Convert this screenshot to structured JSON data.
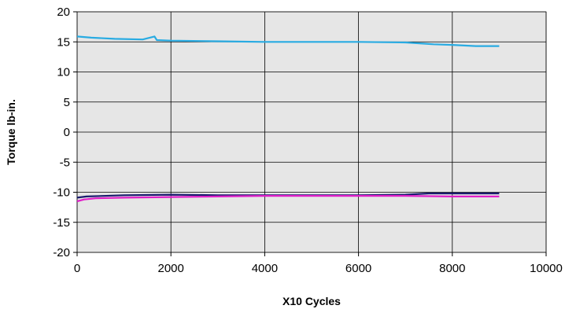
{
  "chart_data": {
    "type": "line",
    "xlabel": "X10  Cycles",
    "ylabel": "Torque lb-in.",
    "xlim": [
      0,
      10000
    ],
    "ylim": [
      -20,
      20
    ],
    "x_ticks": [
      "0",
      "2000",
      "4000",
      "6000",
      "8000",
      "10000"
    ],
    "y_ticks": [
      "20",
      "15",
      "10",
      "5",
      "0",
      "-5",
      "-10",
      "-15",
      "-20"
    ],
    "grid": true,
    "plot_background": "#e6e6e6",
    "series": [
      {
        "color": "#29abe2",
        "x": [
          0,
          300,
          800,
          1400,
          1650,
          1700,
          2000,
          3000,
          4000,
          5000,
          6000,
          7000,
          7400,
          7600,
          8000,
          8500,
          9000
        ],
        "y": [
          15.9,
          15.7,
          15.5,
          15.4,
          15.9,
          15.3,
          15.2,
          15.1,
          15.0,
          15.0,
          15.0,
          14.9,
          14.7,
          14.6,
          14.5,
          14.3,
          14.3
        ]
      },
      {
        "color": "#1a1a6e",
        "x": [
          0,
          200,
          1000,
          2000,
          3000,
          4000,
          5000,
          6000,
          7000,
          7500,
          8000,
          8500,
          9000
        ],
        "y": [
          -10.9,
          -10.7,
          -10.5,
          -10.4,
          -10.5,
          -10.5,
          -10.5,
          -10.5,
          -10.4,
          -10.2,
          -10.2,
          -10.2,
          -10.2
        ]
      },
      {
        "color": "#e020c8",
        "x": [
          0,
          150,
          400,
          1000,
          2000,
          3000,
          4000,
          5000,
          6000,
          7000,
          8000,
          8500,
          9000
        ],
        "y": [
          -11.5,
          -11.2,
          -11.0,
          -10.9,
          -10.8,
          -10.7,
          -10.6,
          -10.6,
          -10.6,
          -10.6,
          -10.7,
          -10.7,
          -10.7
        ]
      }
    ]
  }
}
